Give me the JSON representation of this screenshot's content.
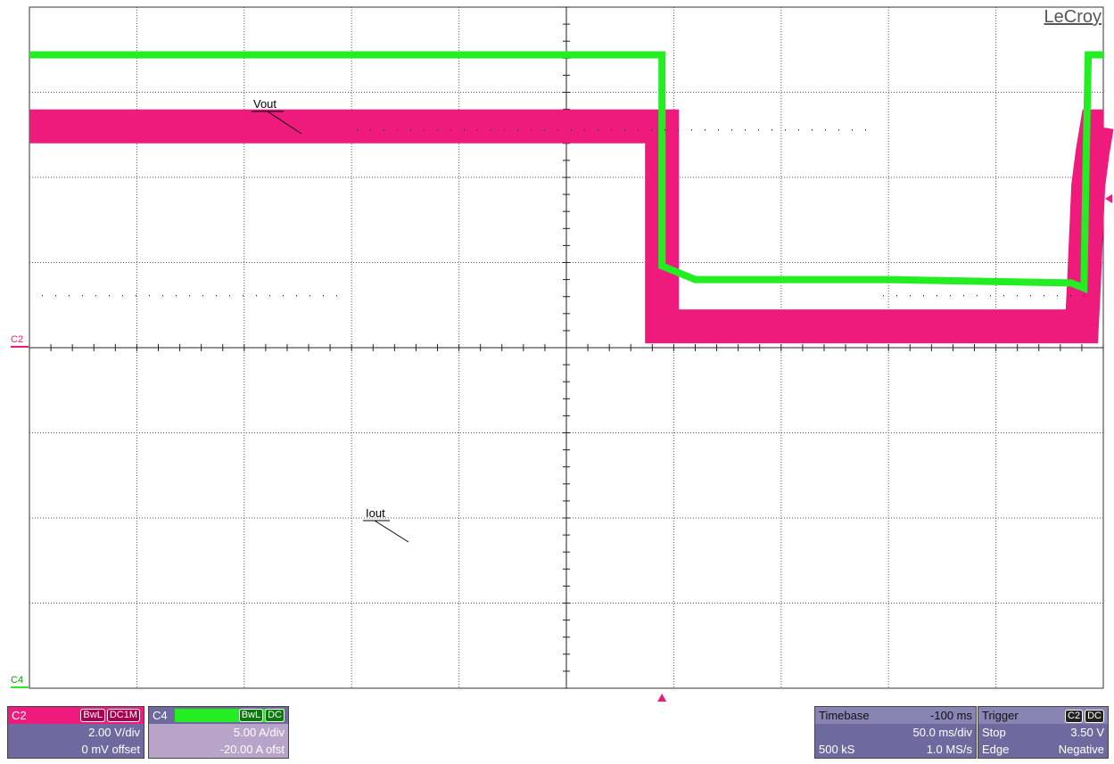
{
  "brand": "LeCroy",
  "colors": {
    "c2": "#ee1a7c",
    "c4": "#22ee22",
    "grid": "#333333",
    "panel": "#6e6aa0"
  },
  "channels": {
    "c2": {
      "label": "C2",
      "tag1": "BwL",
      "tag2": "DC1M",
      "scale": "2.00 V/div",
      "offset": "0 mV offset"
    },
    "c4": {
      "label": "C4",
      "tag1": "BwL",
      "tag2": "DC",
      "scale": "5.00 A/div",
      "offset": "-20.00 A ofst"
    }
  },
  "timebase": {
    "label": "Timebase",
    "delay": "-100 ms",
    "scale": "50.0 ms/div",
    "samples": "500 kS",
    "rate": "1.0 MS/s"
  },
  "trigger": {
    "label": "Trigger",
    "source": "C2",
    "coupling": "DC",
    "mode": "Stop",
    "level": "3.50 V",
    "type": "Edge",
    "slope": "Negative"
  },
  "chart_data": {
    "type": "line",
    "x_unit": "ms",
    "xlim": [
      -350,
      150
    ],
    "grid": {
      "h_divisions": 10,
      "v_divisions": 8
    },
    "series": [
      {
        "name": "Vout",
        "channel": "C2",
        "unit": "V",
        "ylim": [
          -8,
          8
        ],
        "points": [
          [
            -350,
            5.2
          ],
          [
            -55.5,
            5.2
          ],
          [
            -55.5,
            0.5
          ],
          [
            -50,
            0.5
          ],
          [
            140,
            0.5
          ],
          [
            141,
            1.5
          ],
          [
            143,
            3.8
          ],
          [
            145,
            4.6
          ],
          [
            147,
            5.2
          ],
          [
            150,
            5.2
          ]
        ]
      },
      {
        "name": "Iout",
        "channel": "C4",
        "unit": "A",
        "ylim": [
          -20,
          20
        ],
        "points": [
          [
            -350,
            17.2
          ],
          [
            -55.5,
            17.2
          ],
          [
            -55.5,
            4.8
          ],
          [
            -40,
            4.0
          ],
          [
            50,
            4.0
          ],
          [
            135,
            3.8
          ],
          [
            141,
            3.5
          ],
          [
            142,
            11
          ],
          [
            143,
            17.2
          ],
          [
            150,
            17.2
          ]
        ]
      }
    ],
    "annotations": [
      {
        "text": "Vout",
        "series": "Vout"
      },
      {
        "text": "Iout",
        "series": "Iout"
      }
    ]
  }
}
